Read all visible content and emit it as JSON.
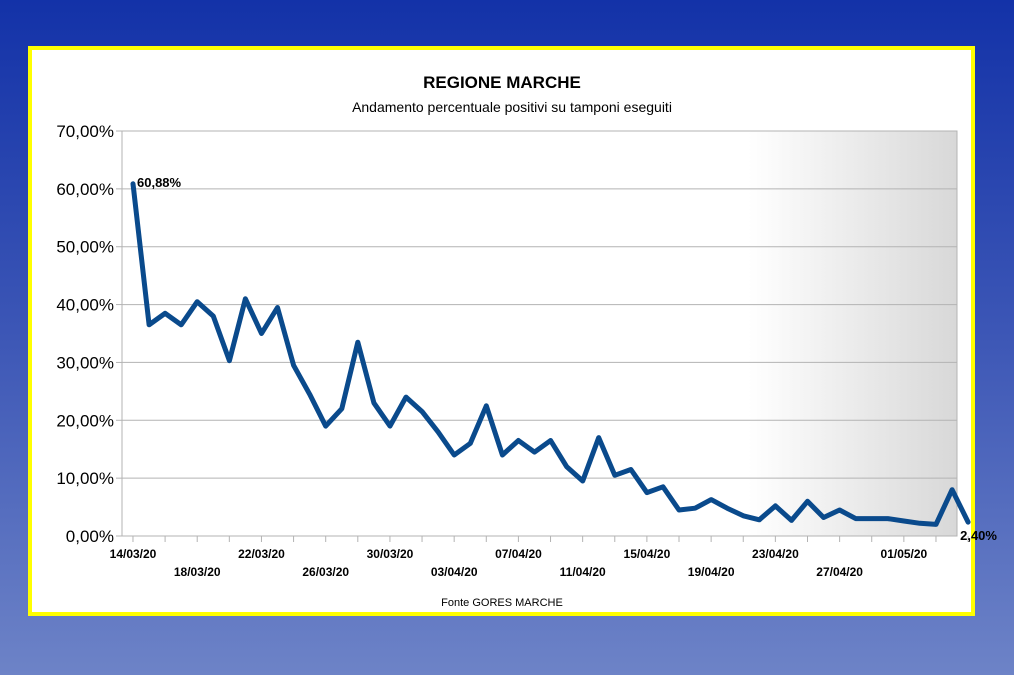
{
  "chart_data": {
    "type": "line",
    "title": "REGIONE MARCHE",
    "subtitle": "Andamento percentuale positivi su tamponi eseguiti",
    "source": "Fonte GORES MARCHE",
    "ylim": [
      0,
      70
    ],
    "yticks": [
      0,
      10,
      20,
      30,
      40,
      50,
      60,
      70
    ],
    "ytick_labels": [
      "0,00%",
      "10,00%",
      "20,00%",
      "30,00%",
      "40,00%",
      "50,00%",
      "60,00%",
      "70,00%"
    ],
    "grid": true,
    "legend": "none",
    "line_color": "#0a4a8c",
    "x": [
      "14/03/20",
      "15/03/20",
      "16/03/20",
      "17/03/20",
      "18/03/20",
      "19/03/20",
      "20/03/20",
      "21/03/20",
      "22/03/20",
      "23/03/20",
      "24/03/20",
      "25/03/20",
      "26/03/20",
      "27/03/20",
      "28/03/20",
      "29/03/20",
      "30/03/20",
      "31/03/20",
      "01/04/20",
      "02/04/20",
      "03/04/20",
      "04/04/20",
      "05/04/20",
      "06/04/20",
      "07/04/20",
      "08/04/20",
      "09/04/20",
      "10/04/20",
      "11/04/20",
      "12/04/20",
      "13/04/20",
      "14/04/20",
      "15/04/20",
      "16/04/20",
      "17/04/20",
      "18/04/20",
      "19/04/20",
      "20/04/20",
      "21/04/20",
      "22/04/20",
      "23/04/20",
      "24/04/20",
      "25/04/20",
      "26/04/20",
      "27/04/20",
      "28/04/20",
      "29/04/20",
      "30/04/20",
      "01/05/20",
      "02/05/20",
      "03/05/20",
      "04/05/20",
      "05/05/20"
    ],
    "values": [
      60.88,
      36.5,
      38.5,
      36.5,
      40.5,
      38,
      30.3,
      41,
      35,
      39.5,
      29.5,
      24.5,
      19,
      22,
      33.5,
      23,
      19,
      24,
      21.5,
      18,
      14,
      16,
      22.5,
      14,
      16.5,
      14.5,
      16.5,
      12,
      9.5,
      17,
      10.5,
      11.5,
      7.5,
      8.5,
      4.5,
      4.8,
      6.3,
      4.8,
      3.5,
      2.8,
      5.2,
      2.7,
      6,
      3.2,
      4.5,
      3,
      3,
      3,
      2.6,
      2.2,
      2,
      8,
      2.4
    ],
    "xtick_labels": [
      {
        "label": "14/03/20",
        "index": 0,
        "row": 1
      },
      {
        "label": "18/03/20",
        "index": 4,
        "row": 2
      },
      {
        "label": "22/03/20",
        "index": 8,
        "row": 1
      },
      {
        "label": "26/03/20",
        "index": 12,
        "row": 2
      },
      {
        "label": "30/03/20",
        "index": 16,
        "row": 1
      },
      {
        "label": "03/04/20",
        "index": 20,
        "row": 2
      },
      {
        "label": "07/04/20",
        "index": 24,
        "row": 1
      },
      {
        "label": "11/04/20",
        "index": 28,
        "row": 2
      },
      {
        "label": "15/04/20",
        "index": 32,
        "row": 1
      },
      {
        "label": "19/04/20",
        "index": 36,
        "row": 2
      },
      {
        "label": "23/04/20",
        "index": 40,
        "row": 1
      },
      {
        "label": "27/04/20",
        "index": 44,
        "row": 2
      },
      {
        "label": "01/05/20",
        "index": 48,
        "row": 1
      }
    ],
    "data_labels": [
      {
        "index": 0,
        "text": "60,88%"
      },
      {
        "index": 52,
        "text": "2,40%"
      }
    ]
  }
}
